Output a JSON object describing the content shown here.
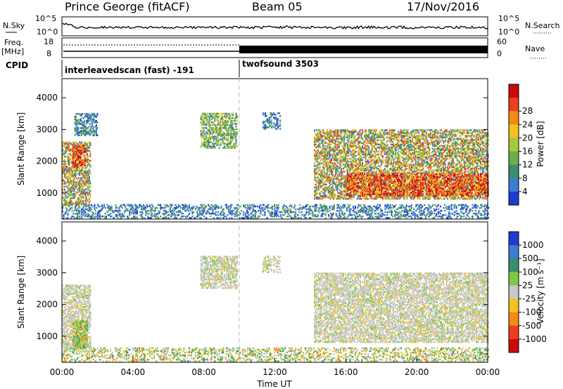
{
  "header": {
    "station": "Prince George (fitACF)",
    "beam": "Beam 05",
    "date": "17/Nov/2016"
  },
  "strip": {
    "nsky_label": "N.Sky",
    "nsky_ticks": [
      "10^5",
      "10^0"
    ],
    "nsearch_label": "N.Search",
    "nsearch_ticks": [
      "10^5",
      "10^0"
    ],
    "freq_label": "Freq.",
    "freq_unit": "[MHz]",
    "freq_ticks": [
      "18",
      "8"
    ],
    "nave_label": "Nave",
    "nave_ticks": [
      "60",
      "0"
    ],
    "cpid_label": "CPID",
    "cpid_segments": [
      {
        "name": "interleavedscan (fast) -191",
        "start_hour": 0
      },
      {
        "name": "twofsound 3503",
        "start_hour": 10
      }
    ]
  },
  "chart_data": [
    {
      "type": "heatmap",
      "panel": "power",
      "xlabel": "",
      "ylabel": "Slant Range [km]",
      "xlim": [
        0,
        24
      ],
      "ylim": [
        180,
        4600
      ],
      "yticks": [
        "1000",
        "2000",
        "3000",
        "4000"
      ],
      "colorbar": {
        "label": "Power [dB]",
        "ticks": [
          "4",
          "8",
          "12",
          "16",
          "20",
          "24",
          "28"
        ],
        "colors": [
          "#1e3ccf",
          "#3f7bd0",
          "#3a8e6e",
          "#6cae4c",
          "#a8c93c",
          "#f2c21f",
          "#f28a1a",
          "#e8401a",
          "#cc0a0a"
        ]
      },
      "echo_regions": [
        {
          "t0": 0.0,
          "t1": 1.6,
          "r0": 600,
          "r1": 2600,
          "level": "mid-high"
        },
        {
          "t0": 0.6,
          "t1": 1.3,
          "r0": 1800,
          "r1": 2500,
          "level": "high"
        },
        {
          "t0": 0.7,
          "t1": 2.0,
          "r0": 2800,
          "r1": 3500,
          "level": "low"
        },
        {
          "t0": 7.8,
          "t1": 9.9,
          "r0": 2400,
          "r1": 3500,
          "level": "mid"
        },
        {
          "t0": 11.3,
          "t1": 12.3,
          "r0": 3000,
          "r1": 3500,
          "level": "low"
        },
        {
          "t0": 14.2,
          "t1": 24.0,
          "r0": 800,
          "r1": 3000,
          "level": "mid-high"
        },
        {
          "t0": 16.0,
          "t1": 24.0,
          "r0": 900,
          "r1": 1600,
          "level": "high"
        },
        {
          "t0": 0.0,
          "t1": 24.0,
          "r0": 200,
          "r1": 650,
          "level": "low"
        }
      ]
    },
    {
      "type": "heatmap",
      "panel": "velocity",
      "xlabel": "Time UT",
      "ylabel": "Slant Range [km]",
      "xlim": [
        0,
        24
      ],
      "ylim": [
        180,
        4600
      ],
      "xticks": [
        "00:00",
        "04:00",
        "08:00",
        "12:00",
        "16:00",
        "20:00",
        "00:00"
      ],
      "yticks": [
        "1000",
        "2000",
        "3000",
        "4000"
      ],
      "colorbar": {
        "label": "Velocity [m s⁻¹]",
        "ticks": [
          "1000",
          "500",
          "100",
          "25",
          "-25",
          "-100",
          "-500",
          "-1000"
        ],
        "colors": [
          "#1e3ccf",
          "#3f7bd0",
          "#3a8e6e",
          "#7fc94a",
          "#c8c8c4",
          "#f2c21f",
          "#f28a1a",
          "#e8401a",
          "#cc0a0a"
        ]
      },
      "echo_regions": [
        {
          "t0": 0.0,
          "t1": 1.6,
          "r0": 600,
          "r1": 2600,
          "level": "ground"
        },
        {
          "t0": 0.6,
          "t1": 1.4,
          "r0": 600,
          "r1": 1500,
          "level": "positive"
        },
        {
          "t0": 7.8,
          "t1": 9.9,
          "r0": 2500,
          "r1": 3500,
          "level": "ground"
        },
        {
          "t0": 11.3,
          "t1": 12.3,
          "r0": 3000,
          "r1": 3500,
          "level": "ground"
        },
        {
          "t0": 14.2,
          "t1": 24.0,
          "r0": 800,
          "r1": 3000,
          "level": "ground"
        },
        {
          "t0": 0.0,
          "t1": 24.0,
          "r0": 200,
          "r1": 650,
          "level": "mixed"
        }
      ]
    }
  ]
}
